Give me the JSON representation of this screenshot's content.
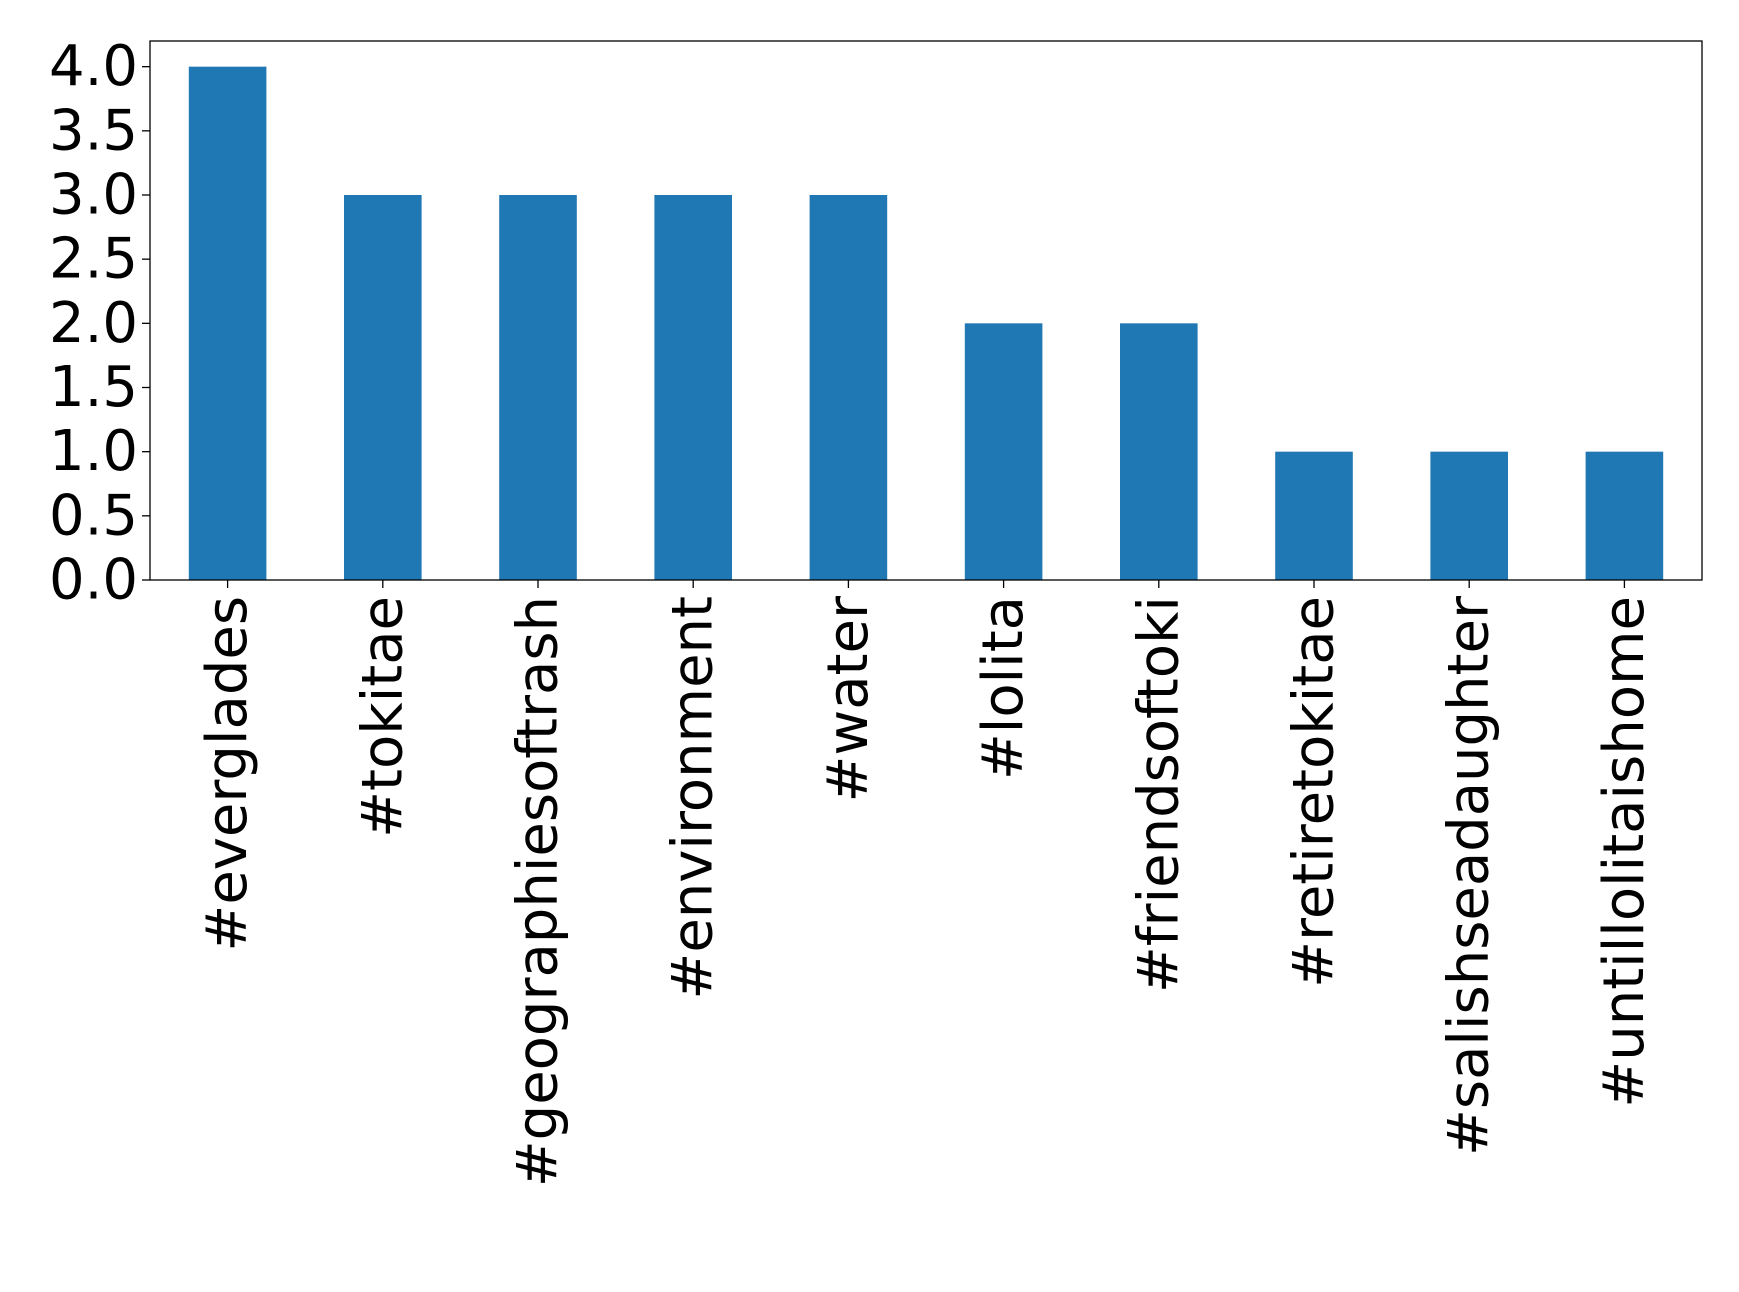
{
  "chart_data": {
    "type": "bar",
    "title": "",
    "xlabel": "",
    "ylabel": "",
    "categories": [
      "#everglades",
      "#tokitae",
      "#geographiesoftrash",
      "#environment",
      "#water",
      "#lolita",
      "#friendsoftoki",
      "#retiretokitae",
      "#salishseadaughter",
      "#untillolitaishome"
    ],
    "values": [
      4,
      3,
      3,
      3,
      3,
      2,
      2,
      1,
      1,
      1
    ],
    "ylim": [
      0,
      4.2
    ],
    "yticks": [
      0.0,
      0.5,
      1.0,
      1.5,
      2.0,
      2.5,
      3.0,
      3.5,
      4.0
    ],
    "ytick_labels": [
      "0.0",
      "0.5",
      "1.0",
      "1.5",
      "2.0",
      "2.5",
      "3.0",
      "3.5",
      "4.0"
    ],
    "bar_color": "#1f77b4",
    "grid": false,
    "legend": "none"
  }
}
